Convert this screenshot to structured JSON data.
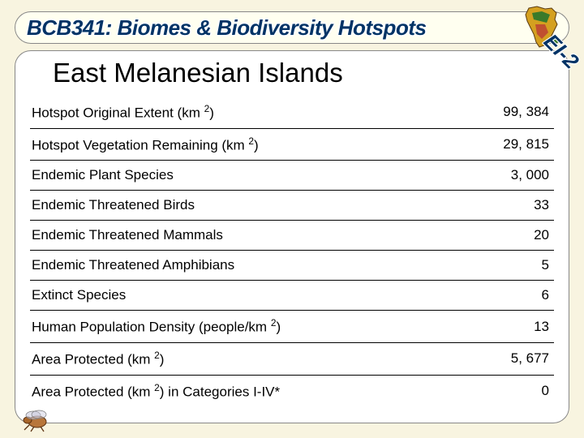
{
  "banner": {
    "text": "BCB341: Biomes & Biodiversity Hotspots",
    "text_color": "#003366",
    "background_color": "#fffff0",
    "border_color": "#888888"
  },
  "corner_label": "EI-2",
  "title": "East Melanesian Islands",
  "table": {
    "rows": [
      {
        "label_pre": "Hotspot Original Extent (km ",
        "sup": "2",
        "label_post": ")",
        "value": "99, 384"
      },
      {
        "label_pre": "Hotspot Vegetation Remaining (km ",
        "sup": "2",
        "label_post": ")",
        "value": "29, 815"
      },
      {
        "label_pre": "Endemic Plant Species",
        "sup": "",
        "label_post": "",
        "value": "3, 000"
      },
      {
        "label_pre": "Endemic Threatened Birds",
        "sup": "",
        "label_post": "",
        "value": "33"
      },
      {
        "label_pre": "Endemic Threatened Mammals",
        "sup": "",
        "label_post": "",
        "value": "20"
      },
      {
        "label_pre": "Endemic Threatened Amphibians",
        "sup": "",
        "label_post": "",
        "value": "5"
      },
      {
        "label_pre": "Extinct Species",
        "sup": "",
        "label_post": "",
        "value": "6"
      },
      {
        "label_pre": "Human Population Density (people/km ",
        "sup": "2",
        "label_post": ")",
        "value": "13"
      },
      {
        "label_pre": "Area Protected (km ",
        "sup": "2",
        "label_post": ")",
        "value": "5, 677"
      },
      {
        "label_pre": "Area Protected (km ",
        "sup": "2",
        "label_post": ") in Categories I-IV*",
        "value": "0"
      }
    ],
    "border_color": "#000000",
    "font_size": 17
  },
  "page_background": "#f8f4e0",
  "content_background": "#ffffff"
}
